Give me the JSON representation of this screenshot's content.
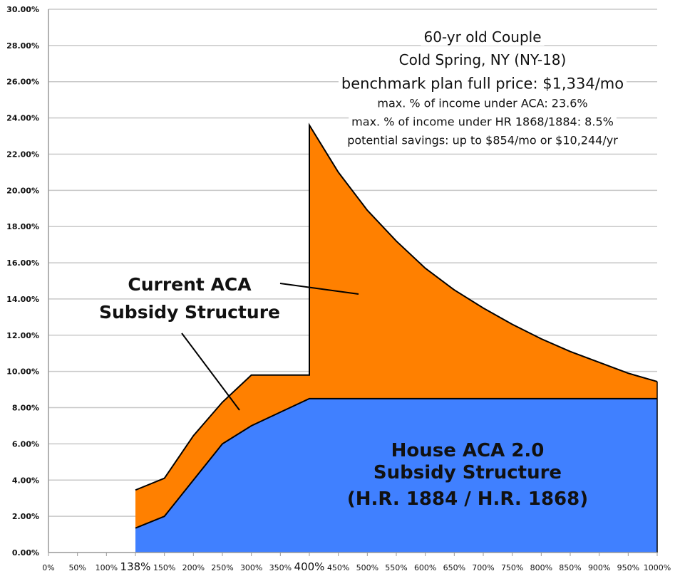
{
  "chart_data": {
    "type": "area",
    "title": "",
    "xlabel": "",
    "ylabel": "",
    "categories": [
      "0%",
      "50%",
      "100%",
      "138%",
      "150%",
      "200%",
      "250%",
      "300%",
      "350%",
      "400%",
      "450%",
      "500%",
      "550%",
      "600%",
      "650%",
      "700%",
      "750%",
      "800%",
      "850%",
      "900%",
      "950%",
      "1000%"
    ],
    "highlighted_ticks": [
      "138%",
      "400%"
    ],
    "ylim": [
      0,
      30
    ],
    "yticks": [
      "0.00%",
      "2.00%",
      "4.00%",
      "6.00%",
      "8.00%",
      "10.00%",
      "12.00%",
      "14.00%",
      "16.00%",
      "18.00%",
      "20.00%",
      "22.00%",
      "24.00%",
      "26.00%",
      "28.00%",
      "30.00%"
    ],
    "grid": "horizontal",
    "series": [
      {
        "label_lines": [
          "Current ACA",
          "Subsidy Structure"
        ],
        "color": "#FF8000",
        "points": [
          [
            "138%",
            3.45
          ],
          [
            "150%",
            4.1
          ],
          [
            "200%",
            6.45
          ],
          [
            "250%",
            8.3
          ],
          [
            "300%",
            9.8
          ],
          [
            "350%",
            9.8
          ],
          [
            "400%",
            9.8
          ],
          [
            "400%",
            23.6
          ],
          [
            "450%",
            21.0
          ],
          [
            "500%",
            18.9
          ],
          [
            "550%",
            17.2
          ],
          [
            "600%",
            15.7
          ],
          [
            "650%",
            14.5
          ],
          [
            "700%",
            13.5
          ],
          [
            "750%",
            12.6
          ],
          [
            "800%",
            11.8
          ],
          [
            "850%",
            11.1
          ],
          [
            "900%",
            10.5
          ],
          [
            "950%",
            9.9
          ],
          [
            "1000%",
            9.44
          ]
        ]
      },
      {
        "label_lines": [
          "House ACA 2.0",
          "Subsidy Structure",
          "(H.R. 1884 / H.R. 1868)"
        ],
        "color": "#4080FF",
        "points": [
          [
            "138%",
            1.35
          ],
          [
            "150%",
            2.0
          ],
          [
            "200%",
            4.0
          ],
          [
            "250%",
            6.0
          ],
          [
            "300%",
            7.0
          ],
          [
            "350%",
            7.75
          ],
          [
            "400%",
            8.5
          ],
          [
            "450%",
            8.5
          ],
          [
            "500%",
            8.5
          ],
          [
            "550%",
            8.5
          ],
          [
            "600%",
            8.5
          ],
          [
            "650%",
            8.5
          ],
          [
            "700%",
            8.5
          ],
          [
            "750%",
            8.5
          ],
          [
            "800%",
            8.5
          ],
          [
            "850%",
            8.5
          ],
          [
            "900%",
            8.5
          ],
          [
            "950%",
            8.5
          ],
          [
            "1000%",
            8.5
          ]
        ]
      }
    ],
    "info_box": [
      "60-yr old Couple",
      "Cold Spring, NY (NY-18)",
      "benchmark plan full price: $1,334/mo",
      "max. % of income under ACA: 23.6%",
      "max. % of income under HR 1868/1884: 8.5%",
      "potential savings: up to $854/mo or $10,244/yr"
    ]
  }
}
